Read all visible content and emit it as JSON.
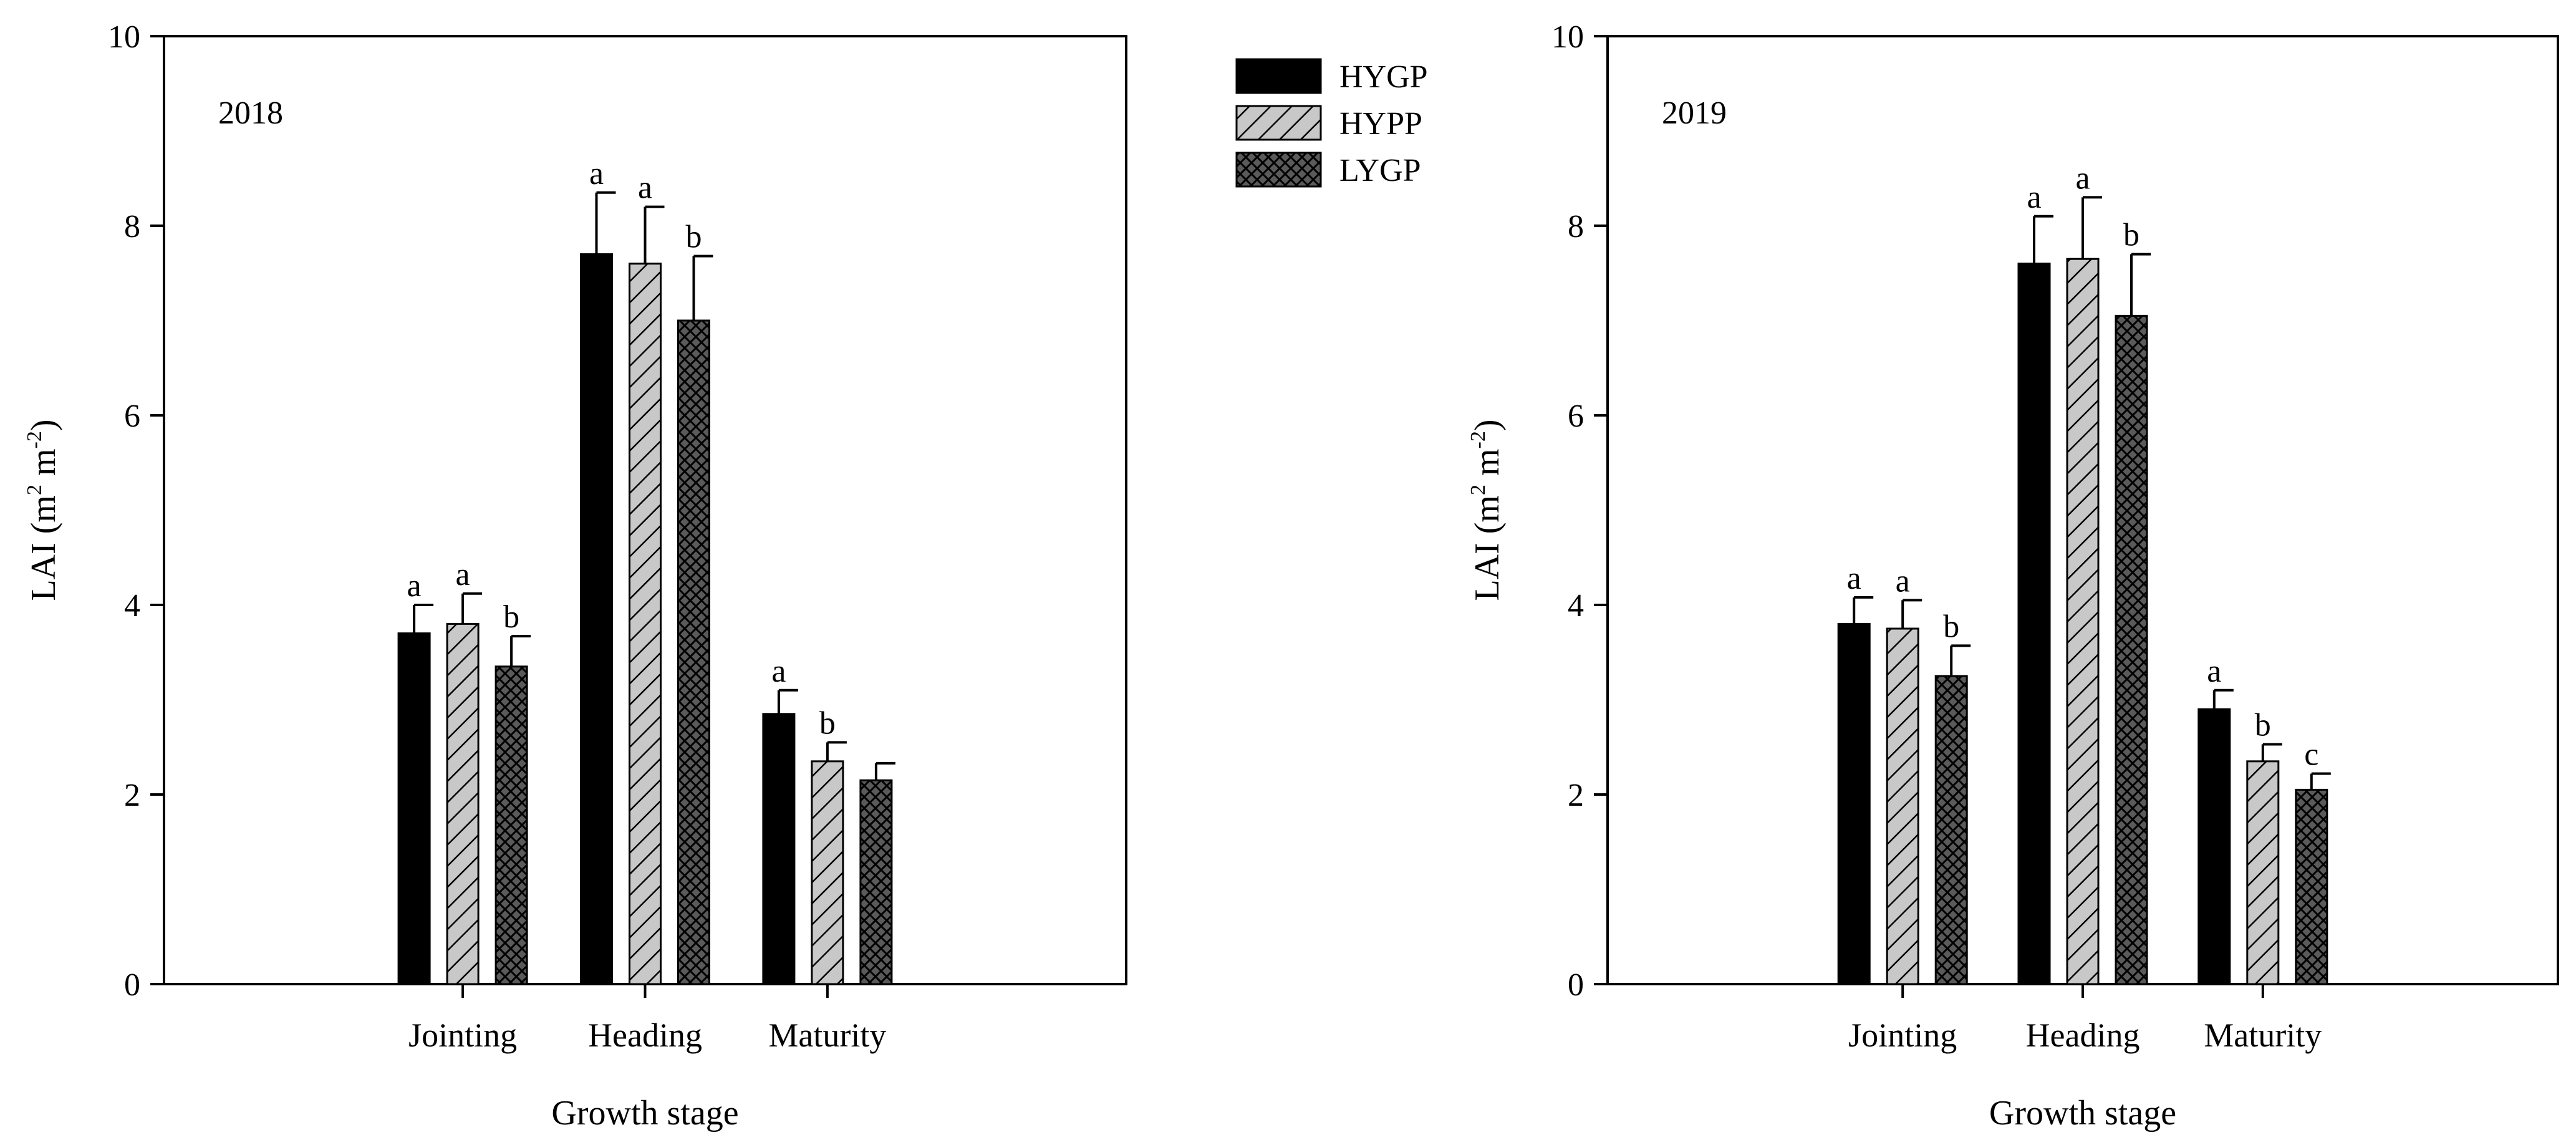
{
  "colors": {
    "HYGP": "#000000",
    "HYPP": "#c8c8c8",
    "LYGP": "#5a5a5a",
    "axis": "#000000",
    "background": "#ffffff"
  },
  "legend": [
    {
      "name": "HYGP",
      "pattern": "solid-black"
    },
    {
      "name": "HYPP",
      "pattern": "diagonal-hatch-light-grey"
    },
    {
      "name": "LYGP",
      "pattern": "crosshatch-dark-grey"
    }
  ],
  "chart_data": [
    {
      "type": "bar",
      "panel_label": "2018",
      "xlabel": "Growth stage",
      "ylabel": "LAI (m² m⁻²)",
      "ylabel_base": "LAI (m",
      "ylabel_exp1": "2",
      "ylabel_mid": " m",
      "ylabel_exp2": "-2",
      "ylabel_end": ")",
      "ylim": [
        0,
        10
      ],
      "yticks": [
        "0",
        "2",
        "4",
        "6",
        "8",
        "10"
      ],
      "categories": [
        "Jointing",
        "Heading",
        "Maturity"
      ],
      "series": [
        {
          "name": "HYGP",
          "values": [
            3.7,
            7.7,
            2.85
          ],
          "errors": [
            0.3,
            0.65,
            0.25
          ],
          "letters": [
            "a",
            "a",
            "a"
          ]
        },
        {
          "name": "HYPP",
          "values": [
            3.8,
            7.6,
            2.35
          ],
          "errors": [
            0.32,
            0.6,
            0.2
          ],
          "letters": [
            "a",
            "a",
            "b"
          ]
        },
        {
          "name": "LYGP",
          "values": [
            3.35,
            7.0,
            2.15
          ],
          "errors": [
            0.32,
            0.68,
            0.18
          ],
          "letters": [
            "b",
            "b",
            ""
          ]
        }
      ]
    },
    {
      "type": "bar",
      "panel_label": "2019",
      "xlabel": "Growth stage",
      "ylabel": "LAI (m² m⁻²)",
      "ylabel_base": "LAI (m",
      "ylabel_exp1": "2",
      "ylabel_mid": " m",
      "ylabel_exp2": "-2",
      "ylabel_end": ")",
      "ylim": [
        0,
        10
      ],
      "yticks": [
        "0",
        "2",
        "4",
        "6",
        "8",
        "10"
      ],
      "categories": [
        "Jointing",
        "Heading",
        "Maturity"
      ],
      "series": [
        {
          "name": "HYGP",
          "values": [
            3.8,
            7.6,
            2.9
          ],
          "errors": [
            0.28,
            0.5,
            0.2
          ],
          "letters": [
            "a",
            "a",
            "a"
          ]
        },
        {
          "name": "HYPP",
          "values": [
            3.75,
            7.65,
            2.35
          ],
          "errors": [
            0.3,
            0.65,
            0.18
          ],
          "letters": [
            "a",
            "a",
            "b"
          ]
        },
        {
          "name": "LYGP",
          "values": [
            3.25,
            7.05,
            2.05
          ],
          "errors": [
            0.32,
            0.65,
            0.17
          ],
          "letters": [
            "b",
            "b",
            "c"
          ]
        }
      ]
    }
  ]
}
